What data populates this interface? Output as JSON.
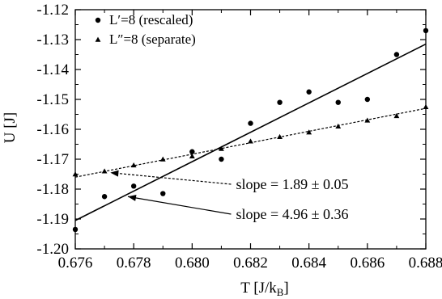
{
  "chart_data": {
    "type": "scatter",
    "xlabel": "T [J/k",
    "xlabel_sub": "B",
    "xlabel_close": "]",
    "ylabel": "U [J]",
    "xlim": [
      0.676,
      0.688
    ],
    "ylim": [
      -1.2,
      -1.12
    ],
    "x_ticks": [
      0.676,
      0.678,
      0.68,
      0.682,
      0.684,
      0.686,
      0.688
    ],
    "x_tick_labels": [
      "0.676",
      "0.678",
      "0.680",
      "0.682",
      "0.684",
      "0.686",
      "0.688"
    ],
    "y_ticks": [
      -1.2,
      -1.19,
      -1.18,
      -1.17,
      -1.16,
      -1.15,
      -1.14,
      -1.13,
      -1.12
    ],
    "y_tick_labels": [
      "-1.20",
      "-1.19",
      "-1.18",
      "-1.17",
      "-1.16",
      "-1.15",
      "-1.14",
      "-1.13",
      "-1.12"
    ],
    "grid": false,
    "legend_position": "top-left",
    "series": [
      {
        "name": "L′=8 (rescaled)",
        "marker": "circle",
        "x": [
          0.676,
          0.677,
          0.678,
          0.679,
          0.68,
          0.681,
          0.682,
          0.683,
          0.684,
          0.685,
          0.686,
          0.687,
          0.688
        ],
        "y": [
          -1.1935,
          -1.1825,
          -1.179,
          -1.1815,
          -1.1675,
          -1.17,
          -1.158,
          -1.151,
          -1.1475,
          -1.151,
          -1.15,
          -1.135,
          -1.127
        ],
        "fit": {
          "x": [
            0.676,
            0.688
          ],
          "y": [
            -1.1905,
            -1.1315
          ],
          "style": "solid"
        }
      },
      {
        "name": "L″=8 (separate)",
        "marker": "triangle",
        "x": [
          0.676,
          0.677,
          0.678,
          0.679,
          0.68,
          0.681,
          0.682,
          0.683,
          0.684,
          0.685,
          0.686,
          0.687,
          0.688
        ],
        "y": [
          -1.175,
          -1.174,
          -1.172,
          -1.17,
          -1.169,
          -1.1665,
          -1.164,
          -1.1625,
          -1.161,
          -1.159,
          -1.157,
          -1.1555,
          -1.1525
        ],
        "fit": {
          "x": [
            0.676,
            0.688
          ],
          "y": [
            -1.176,
            -1.153
          ],
          "style": "dashed"
        }
      }
    ],
    "annotations": [
      {
        "text": "slope = 1.89 ± 0.05",
        "label_x": 0.6815,
        "label_y": -1.18,
        "arrow_to_x": 0.6772,
        "arrow_to_y": -1.1745,
        "arrow_style": "dashed"
      },
      {
        "text": "slope = 4.96 ± 0.36",
        "label_x": 0.6815,
        "label_y": -1.19,
        "arrow_to_x": 0.6778,
        "arrow_to_y": -1.1825,
        "arrow_style": "solid"
      }
    ],
    "colors": {
      "ink": "#000000",
      "background": "#ffffff"
    }
  }
}
